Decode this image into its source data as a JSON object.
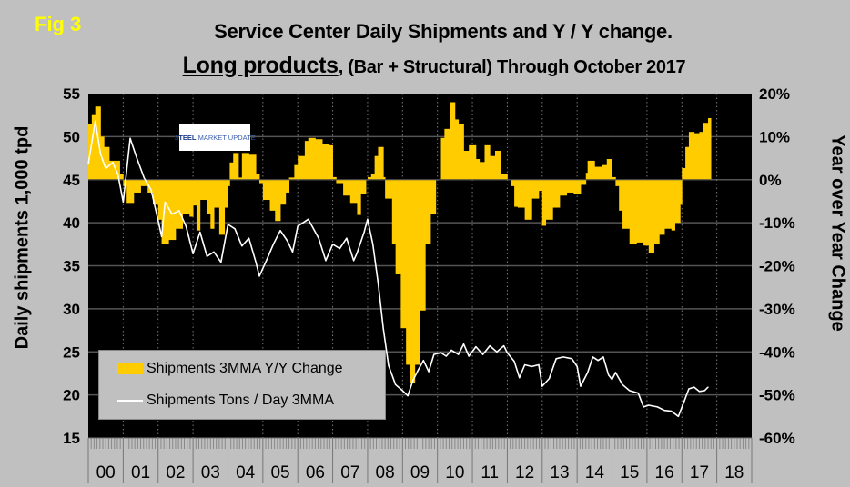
{
  "figure_label": "Fig 3",
  "logo_text": "STEEL MARKET UPDATE",
  "chart_data": {
    "type": "bar+line",
    "title": "Service Center Daily Shipments and Y / Y change.",
    "subtitle_emphasis": "Long products",
    "subtitle_rest": ", (Bar + Structural) Through October 2017",
    "ylabel_left": "Daily shipments 1,000 tpd",
    "ylabel_right": "Year over Year Change",
    "ylim_left": [
      15,
      55
    ],
    "ylim_right": [
      -60,
      20
    ],
    "yticks_left": [
      "55",
      "50",
      "45",
      "40",
      "35",
      "30",
      "25",
      "20",
      "15"
    ],
    "yticks_right": [
      "20%",
      "10%",
      "0%",
      "-10%",
      "-20%",
      "-30%",
      "-40%",
      "-50%",
      "-60%"
    ],
    "xticks": [
      "00",
      "01",
      "02",
      "03",
      "04",
      "05",
      "06",
      "07",
      "08",
      "09",
      "10",
      "11",
      "12",
      "13",
      "14",
      "15",
      "16",
      "17",
      "18"
    ],
    "xlim": [
      2000,
      2019
    ],
    "grid": true,
    "legend_position": "bottom-left",
    "colors": {
      "bars": "#ffcc00",
      "line": "#ffffff",
      "plot_bg": "#000000",
      "page_bg": "#c0c0c0"
    },
    "series": [
      {
        "name": "Shipments 3MMA Y/Y Change",
        "type": "bar",
        "axis": "right",
        "x": [
          2000.0,
          2000.1,
          2000.2,
          2000.35,
          2000.45,
          2000.6,
          2000.8,
          2000.9,
          2001.0,
          2001.1,
          2001.3,
          2001.5,
          2001.7,
          2001.85,
          2002.0,
          2002.1,
          2002.3,
          2002.5,
          2002.7,
          2002.9,
          2003.0,
          2003.1,
          2003.2,
          2003.4,
          2003.5,
          2003.6,
          2003.75,
          2003.9,
          2004.0,
          2004.05,
          2004.15,
          2004.3,
          2004.4,
          2004.6,
          2004.8,
          2004.9,
          2005.0,
          2005.2,
          2005.35,
          2005.5,
          2005.65,
          2005.75,
          2005.9,
          2006.0,
          2006.2,
          2006.3,
          2006.5,
          2006.7,
          2006.9,
          2007.0,
          2007.1,
          2007.3,
          2007.5,
          2007.7,
          2007.8,
          2007.95,
          2008.0,
          2008.1,
          2008.2,
          2008.3,
          2008.45,
          2008.5,
          2008.7,
          2008.8,
          2008.95,
          2009.1,
          2009.2,
          2009.35,
          2009.5,
          2009.65,
          2009.8,
          2009.95,
          2010.1,
          2010.2,
          2010.35,
          2010.5,
          2010.6,
          2010.75,
          2010.9,
          2011.1,
          2011.2,
          2011.35,
          2011.5,
          2011.65,
          2011.8,
          2012.0,
          2012.1,
          2012.2,
          2012.3,
          2012.5,
          2012.7,
          2012.9,
          2013.0,
          2013.1,
          2013.3,
          2013.5,
          2013.7,
          2013.9,
          2014.1,
          2014.25,
          2014.3,
          2014.5,
          2014.7,
          2014.85,
          2015.0,
          2015.1,
          2015.2,
          2015.3,
          2015.5,
          2015.7,
          2015.9,
          2016.05,
          2016.2,
          2016.35,
          2016.5,
          2016.7,
          2016.8,
          2016.95,
          2017.0,
          2017.1,
          2017.2,
          2017.35,
          2017.5,
          2017.6,
          2017.75
        ],
        "values": [
          13,
          15,
          17,
          10,
          7.6,
          4.4,
          4.4,
          1.3,
          -1.5,
          -5.4,
          -3,
          -1.5,
          -3,
          -5.8,
          -9.3,
          -15,
          -14,
          -11.4,
          -7.9,
          -8.6,
          -6,
          -11.8,
          -4.7,
          -7.9,
          -11.4,
          -6.5,
          -12.8,
          -6.5,
          -1.5,
          4,
          6.2,
          0.5,
          6.2,
          5.8,
          1.3,
          -0.8,
          -4.7,
          -7.2,
          -9.6,
          -5.8,
          -3,
          0.5,
          3.4,
          5.5,
          9,
          9.7,
          9.4,
          8.3,
          8,
          0.6,
          -0.8,
          -3.7,
          -5.4,
          -8.2,
          -3.3,
          0,
          0.6,
          1.3,
          5.5,
          7.6,
          0.6,
          -4.4,
          -15,
          -22,
          -34.5,
          -43,
          -47.3,
          -43,
          -30.4,
          -15,
          -7.9,
          0,
          9.7,
          11.8,
          18,
          14,
          13,
          6.7,
          8,
          4.8,
          4.1,
          8,
          5.5,
          6.7,
          1.3,
          0,
          -1.5,
          -6.3,
          -6.5,
          -9.3,
          -4.4,
          -2.6,
          -10.7,
          -9.3,
          -6.5,
          -3.7,
          -3,
          -3.3,
          -1.2,
          1.6,
          4.4,
          3,
          3.4,
          4.8,
          0.6,
          -1.5,
          -7.2,
          -11.4,
          -15,
          -14.6,
          -15.3,
          -17,
          -15,
          -12.8,
          -11.4,
          -11.8,
          -10,
          -5.8,
          2.7,
          7.6,
          11.1,
          10.8,
          11.1,
          13.2,
          14.3
        ],
        "x_end": 2017.83
      },
      {
        "name": "Shipments Tons / Day 3MMA",
        "type": "line",
        "axis": "left",
        "x": [
          2000.0,
          2000.2,
          2000.35,
          2000.5,
          2000.7,
          2000.85,
          2001.0,
          2001.2,
          2001.4,
          2001.6,
          2001.8,
          2002.0,
          2002.1,
          2002.2,
          2002.4,
          2002.6,
          2002.8,
          2003.0,
          2003.2,
          2003.4,
          2003.6,
          2003.8,
          2004.0,
          2004.2,
          2004.4,
          2004.6,
          2004.8,
          2004.9,
          2005.1,
          2005.3,
          2005.5,
          2005.7,
          2005.85,
          2006.0,
          2006.15,
          2006.3,
          2006.6,
          2006.8,
          2007.0,
          2007.2,
          2007.4,
          2007.6,
          2007.7,
          2007.9,
          2008.0,
          2008.15,
          2008.3,
          2008.45,
          2008.6,
          2008.8,
          2009.0,
          2009.15,
          2009.3,
          2009.45,
          2009.6,
          2009.75,
          2009.9,
          2010.1,
          2010.25,
          2010.4,
          2010.6,
          2010.75,
          2010.9,
          2011.1,
          2011.3,
          2011.5,
          2011.7,
          2011.9,
          2012.0,
          2012.2,
          2012.35,
          2012.5,
          2012.7,
          2012.9,
          2013.0,
          2013.2,
          2013.4,
          2013.6,
          2013.85,
          2014.0,
          2014.1,
          2014.3,
          2014.45,
          2014.6,
          2014.75,
          2014.9,
          2015.0,
          2015.1,
          2015.3,
          2015.5,
          2015.75,
          2015.9,
          2016.05,
          2016.3,
          2016.5,
          2016.7,
          2016.9,
          2017.05,
          2017.2,
          2017.35,
          2017.5,
          2017.65,
          2017.75
        ],
        "values": [
          46.8,
          51.8,
          48,
          46.3,
          47,
          45.6,
          42.4,
          49.8,
          47.4,
          45.2,
          43.8,
          40.3,
          38.4,
          42.4,
          41,
          41.4,
          39.6,
          36.4,
          38.9,
          36.1,
          36.6,
          35.4,
          39.8,
          39.3,
          37.3,
          38.2,
          35.4,
          33.8,
          35.6,
          37.5,
          39.1,
          37.9,
          36.6,
          39.6,
          40,
          40.4,
          38.2,
          35.6,
          37.5,
          37,
          38.2,
          35.6,
          36.5,
          38.9,
          40.4,
          37.5,
          33,
          27.7,
          23.4,
          21.2,
          20.5,
          19.9,
          21.7,
          22.9,
          24,
          22.7,
          24.7,
          24.9,
          24.5,
          25.2,
          24.7,
          25.9,
          24.5,
          25.6,
          24.7,
          25.7,
          25,
          25.7,
          24.9,
          23.9,
          22,
          23.5,
          23.3,
          23.5,
          21,
          21.9,
          24.2,
          24.4,
          24.2,
          23.3,
          21,
          22.6,
          24.4,
          24,
          24.4,
          22.3,
          21.8,
          22.6,
          21.2,
          20.5,
          20.2,
          18.6,
          18.8,
          18.6,
          18.2,
          18.1,
          17.5,
          19.1,
          20.7,
          20.9,
          20.4,
          20.5,
          20.9
        ]
      }
    ]
  }
}
